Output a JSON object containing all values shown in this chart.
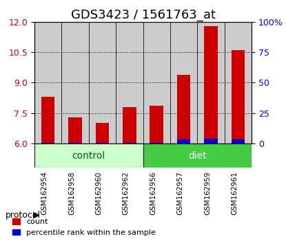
{
  "title": "GDS3423 / 1561763_at",
  "samples": [
    "GSM162954",
    "GSM162958",
    "GSM162960",
    "GSM162962",
    "GSM162956",
    "GSM162957",
    "GSM162959",
    "GSM162961"
  ],
  "groups": [
    "control",
    "control",
    "control",
    "control",
    "diet",
    "diet",
    "diet",
    "diet"
  ],
  "red_values": [
    8.3,
    7.3,
    7.0,
    7.8,
    7.85,
    9.4,
    11.8,
    10.6
  ],
  "blue_values": [
    0.5,
    0.7,
    0.5,
    0.5,
    0.5,
    3.5,
    4.0,
    3.5
  ],
  "ymin": 6.0,
  "ymax": 12.0,
  "yticks": [
    6,
    7.5,
    9,
    10.5,
    12
  ],
  "right_yticks": [
    0,
    25,
    50,
    75,
    100
  ],
  "right_yticklabels": [
    "0",
    "25",
    "50",
    "75",
    "100%"
  ],
  "bar_width": 0.5,
  "red_color": "#cc0000",
  "blue_color": "#0000cc",
  "control_color": "#ccffcc",
  "diet_color": "#44cc44",
  "group_label_color": "#006600",
  "bar_bg_color": "#cccccc",
  "title_fontsize": 13,
  "tick_fontsize": 9,
  "legend_fontsize": 8,
  "group_fontsize": 10
}
